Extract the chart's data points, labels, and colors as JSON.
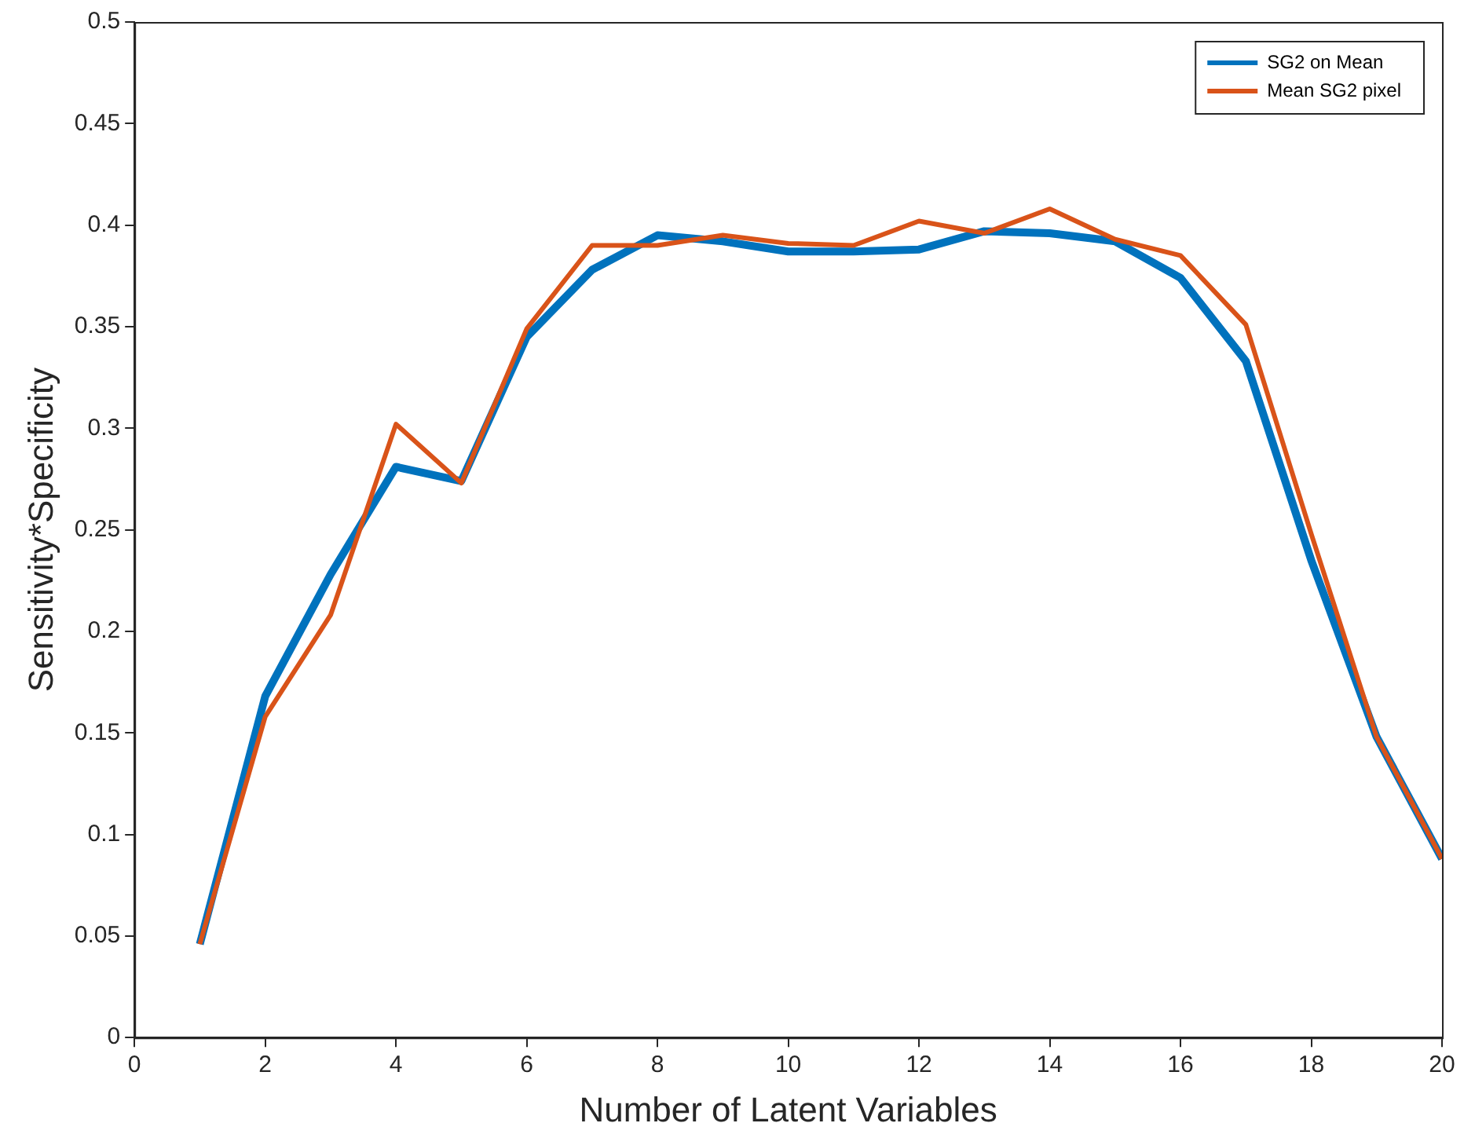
{
  "chart_data": {
    "type": "line",
    "xlabel": "Number of Latent Variables",
    "ylabel": "Sensitivity*Specificity",
    "x": [
      1,
      2,
      3,
      4,
      5,
      6,
      7,
      8,
      9,
      10,
      11,
      12,
      13,
      14,
      15,
      16,
      17,
      18,
      19,
      20
    ],
    "series": [
      {
        "name": "SG2 on Mean",
        "color": "#0072bd",
        "values": [
          0.046,
          0.168,
          0.228,
          0.281,
          0.274,
          0.345,
          0.378,
          0.395,
          0.392,
          0.387,
          0.387,
          0.388,
          0.397,
          0.396,
          0.392,
          0.374,
          0.333,
          0.235,
          0.148,
          0.088
        ]
      },
      {
        "name": "Mean SG2 pixel",
        "color": "#d95319",
        "values": [
          0.046,
          0.158,
          0.208,
          0.302,
          0.273,
          0.349,
          0.39,
          0.39,
          0.395,
          0.391,
          0.39,
          0.402,
          0.396,
          0.408,
          0.393,
          0.385,
          0.351,
          0.248,
          0.148,
          0.088
        ]
      }
    ],
    "xlim": [
      0,
      20
    ],
    "xticks": [
      0,
      2,
      4,
      6,
      8,
      10,
      12,
      14,
      16,
      18,
      20
    ],
    "ylim": [
      0,
      0.5
    ],
    "yticks": [
      0,
      0.05,
      0.1,
      0.15,
      0.2,
      0.25,
      0.3,
      0.35,
      0.4,
      0.45,
      0.5
    ],
    "legend": "top right"
  }
}
